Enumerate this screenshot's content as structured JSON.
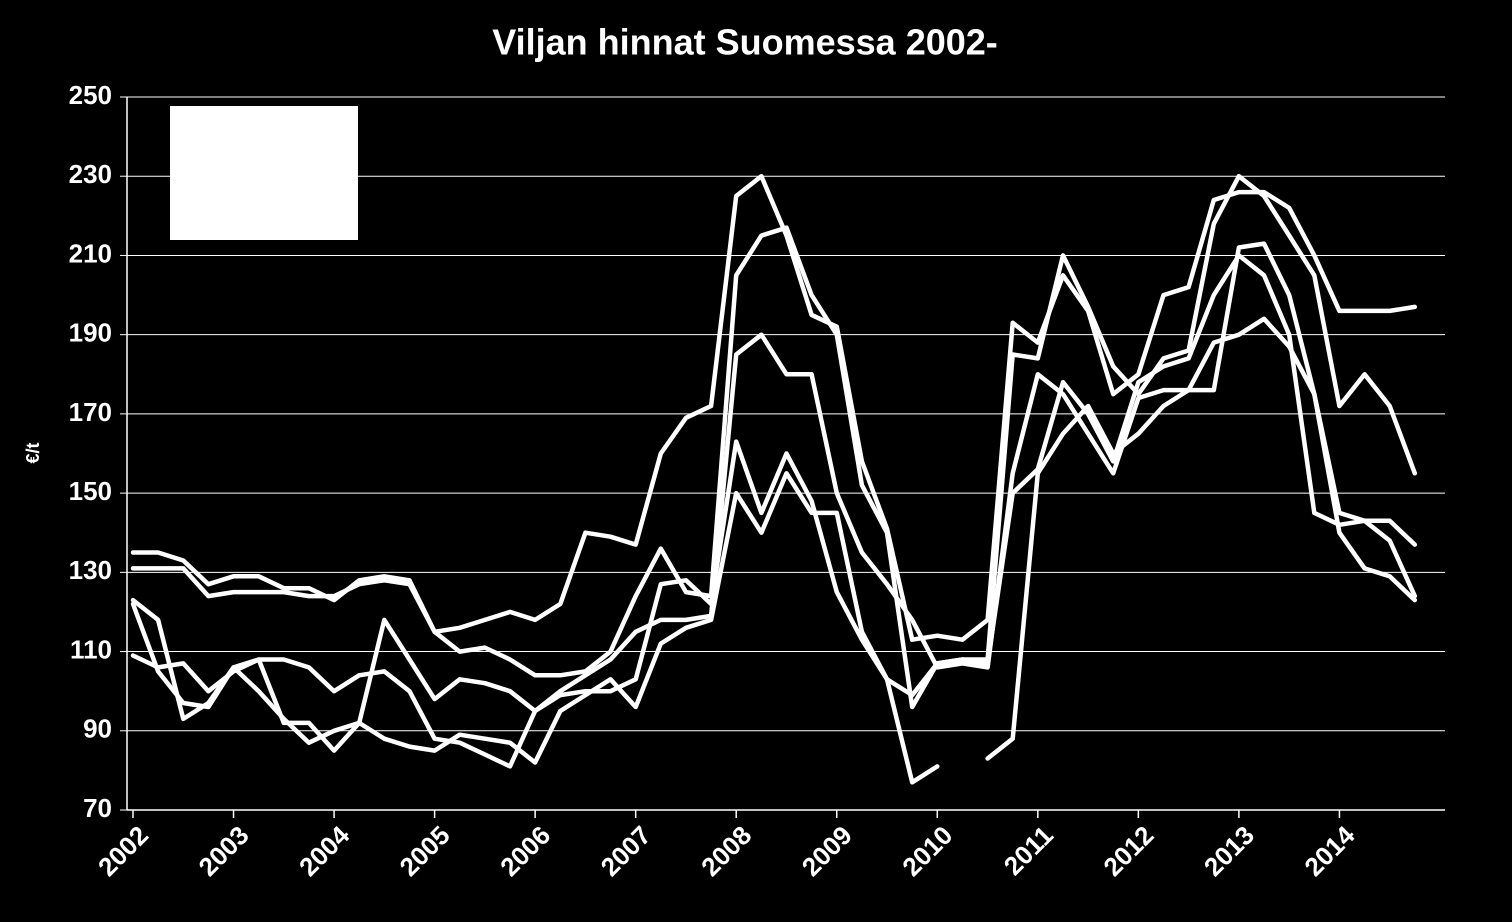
{
  "chart_data": {
    "type": "line",
    "title": "Viljan hinnat Suomessa 2002-",
    "y_label": "€/t",
    "x": [
      2002,
      2002.25,
      2002.5,
      2002.75,
      2003,
      2003.25,
      2003.5,
      2003.75,
      2004,
      2004.25,
      2004.5,
      2004.75,
      2005,
      2005.25,
      2005.5,
      2005.75,
      2006,
      2006.25,
      2006.5,
      2006.75,
      2007,
      2007.25,
      2007.5,
      2007.75,
      2008,
      2008.25,
      2008.5,
      2008.75,
      2009,
      2009.25,
      2009.5,
      2009.75,
      2010,
      2010.25,
      2010.5,
      2010.75,
      2011,
      2011.25,
      2011.5,
      2011.75,
      2012,
      2012.25,
      2012.5,
      2012.75,
      2013,
      2013.25,
      2013.5,
      2013.75,
      2014,
      2014.25,
      2014.5,
      2014.75
    ],
    "series": [
      {
        "color": "#ffffff",
        "values": [
          135,
          135,
          133,
          127,
          129,
          129,
          126,
          126,
          123,
          128,
          129,
          128,
          115,
          116,
          118,
          120,
          118,
          122,
          140,
          139,
          137,
          160,
          169,
          172,
          225,
          230,
          215,
          195,
          192,
          158,
          141,
          113,
          114,
          113,
          118,
          193,
          188,
          205,
          196,
          175,
          180,
          200,
          202,
          224,
          226,
          226,
          222,
          210,
          196,
          196,
          196,
          197
        ]
      },
      {
        "color": "#ffffff",
        "values": [
          131,
          131,
          131,
          124,
          125,
          125,
          125,
          124,
          124,
          127,
          128,
          127,
          115,
          110,
          111,
          108,
          104,
          104,
          105,
          110,
          124,
          136,
          125,
          124,
          205,
          215,
          217,
          200,
          190,
          152,
          140,
          96,
          107,
          108,
          108,
          185,
          184,
          210,
          197,
          182,
          175,
          184,
          186,
          218,
          230,
          225,
          215,
          205,
          172,
          180,
          172,
          155
        ]
      },
      {
        "color": "#ffffff",
        "values": [
          123,
          118,
          93,
          97,
          106,
          108,
          92,
          92,
          85,
          92,
          118,
          108,
          98,
          103,
          102,
          100,
          95,
          100,
          104,
          108,
          115,
          118,
          118,
          119,
          185,
          190,
          180,
          180,
          150,
          135,
          127,
          118,
          106,
          107,
          106,
          155,
          180,
          175,
          165,
          155,
          174,
          176,
          176,
          188,
          190,
          194,
          187,
          175,
          145,
          143,
          143,
          137
        ]
      },
      {
        "color": "#ffffff",
        "values": [
          109,
          106,
          107,
          100,
          105,
          108,
          108,
          106,
          100,
          104,
          105,
          100,
          88,
          87,
          84,
          81,
          95,
          99,
          100,
          100,
          103,
          127,
          128,
          122,
          163,
          145,
          160,
          148,
          125,
          113,
          103,
          99,
          107,
          108,
          107,
          150,
          156,
          178,
          170,
          158,
          178,
          182,
          184,
          200,
          210,
          205,
          190,
          145,
          142,
          143,
          138,
          124
        ]
      },
      {
        "color": "#ffffff",
        "values": [
          122,
          105,
          97,
          96,
          106,
          100,
          93,
          87,
          90,
          92,
          88,
          86,
          85,
          89,
          88,
          87,
          82,
          95,
          99,
          103,
          96,
          112,
          116,
          118,
          150,
          140,
          155,
          145,
          145,
          115,
          103,
          77,
          81,
          null,
          83,
          88,
          155,
          165,
          172,
          160,
          165,
          172,
          176,
          176,
          212,
          213,
          200,
          175,
          140,
          131,
          129,
          123
        ]
      }
    ],
    "xlim": [
      2002,
      2015.05
    ],
    "xticks": [
      2002,
      2003,
      2004,
      2005,
      2006,
      2007,
      2008,
      2009,
      2010,
      2011,
      2012,
      2013,
      2014
    ],
    "ylim": [
      70,
      250
    ],
    "yticks": [
      70,
      90,
      110,
      130,
      150,
      170,
      190,
      210,
      230,
      250
    ],
    "grid": true
  }
}
